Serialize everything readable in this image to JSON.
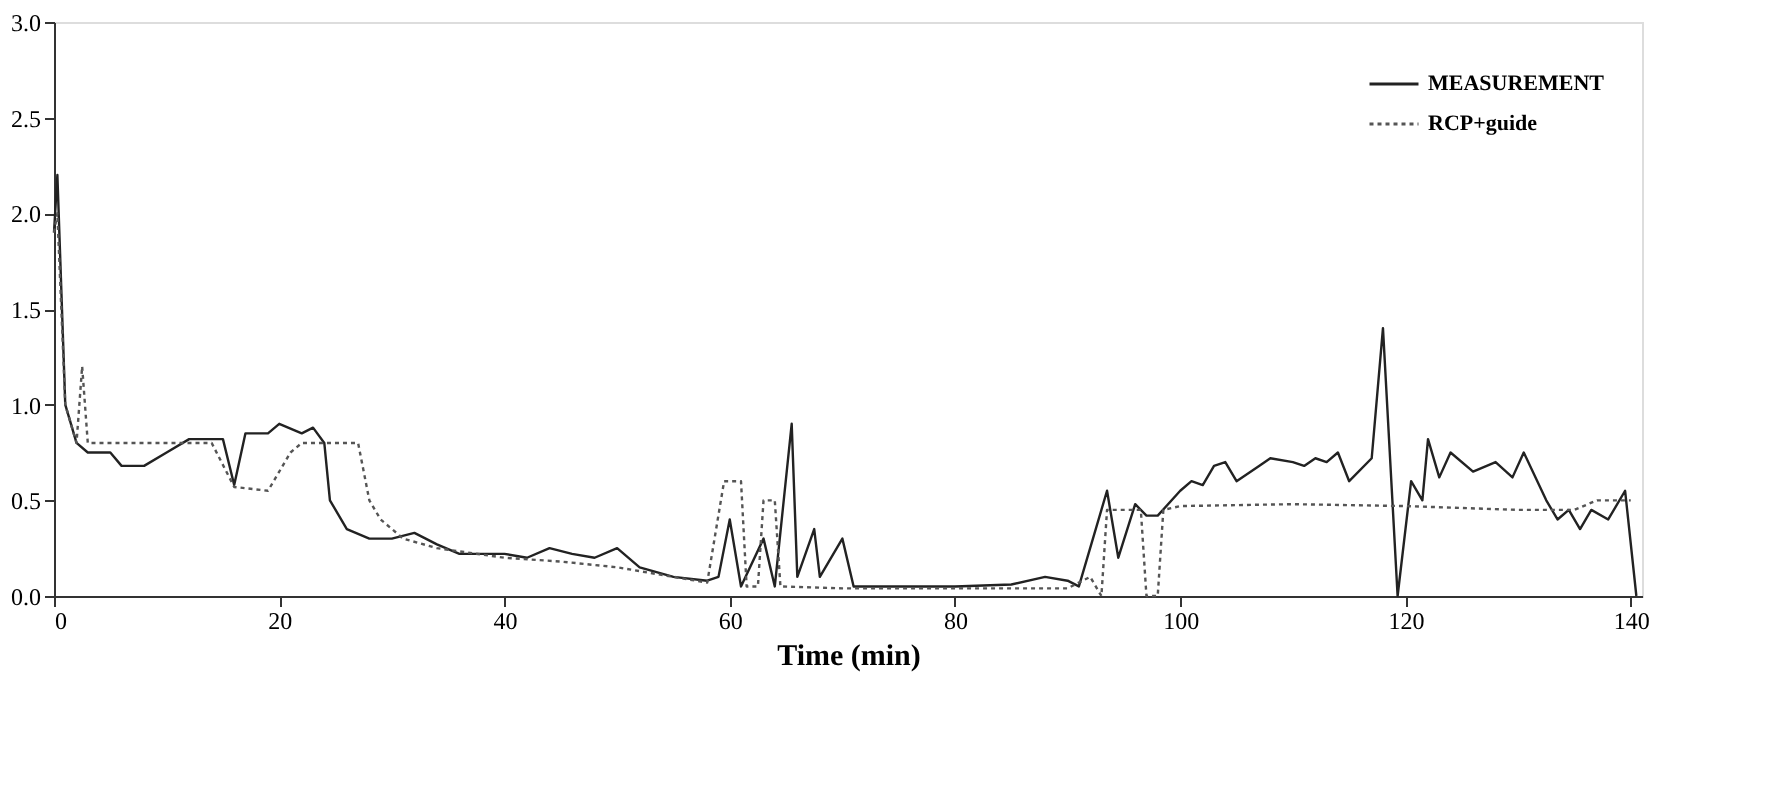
{
  "chart_data": {
    "type": "line",
    "xlabel": "Time (min)",
    "xlim": [
      0,
      141
    ],
    "ylim": [
      0,
      3
    ],
    "xticks": [
      0,
      20,
      40,
      60,
      80,
      100,
      120,
      140
    ],
    "yticks": [
      {
        "value": 0,
        "label": "0.0"
      },
      {
        "value": 0.5,
        "label": "0.5"
      },
      {
        "value": 1,
        "label": "1.0"
      },
      {
        "value": 1.5,
        "label": "1.5"
      },
      {
        "value": 2,
        "label": "2.0"
      },
      {
        "value": 2.5,
        "label": "2.5"
      },
      {
        "value": 3,
        "label": "3.0"
      }
    ],
    "grid": false,
    "legend": "top right",
    "marker": "none",
    "series": [
      {
        "name": "MEASUREMENT",
        "color": "#222222",
        "line_style": "solid",
        "x": [
          0,
          0.3,
          1,
          2,
          3,
          5,
          6,
          8,
          10,
          12,
          15,
          16,
          17,
          19,
          20,
          22,
          23,
          24,
          24.5,
          26,
          28,
          30,
          32,
          34,
          36,
          40,
          42,
          44,
          46,
          48,
          50,
          52,
          55,
          58,
          59,
          60,
          61,
          63,
          64,
          65.5,
          66,
          67.5,
          68,
          70,
          71,
          75,
          80,
          85,
          88,
          90,
          91,
          93.5,
          94.5,
          96,
          97,
          98,
          100,
          101,
          102,
          103,
          104,
          105,
          107,
          108,
          110,
          111,
          112,
          113,
          114,
          115,
          117,
          118,
          119.3,
          120.5,
          121.5,
          122,
          123,
          124,
          126,
          128,
          129.5,
          130.5,
          132.5,
          133.5,
          134.5,
          135.5,
          136.5,
          138,
          139.5,
          140.5
        ],
        "values": [
          1.9,
          2.2,
          1.0,
          0.8,
          0.75,
          0.75,
          0.68,
          0.68,
          0.75,
          0.82,
          0.82,
          0.58,
          0.85,
          0.85,
          0.9,
          0.85,
          0.88,
          0.8,
          0.5,
          0.35,
          0.3,
          0.3,
          0.33,
          0.27,
          0.22,
          0.22,
          0.2,
          0.25,
          0.22,
          0.2,
          0.25,
          0.15,
          0.1,
          0.08,
          0.1,
          0.4,
          0.05,
          0.3,
          0.05,
          0.9,
          0.1,
          0.35,
          0.1,
          0.3,
          0.05,
          0.05,
          0.05,
          0.06,
          0.1,
          0.08,
          0.05,
          0.55,
          0.2,
          0.48,
          0.42,
          0.42,
          0.55,
          0.6,
          0.58,
          0.68,
          0.7,
          0.6,
          0.68,
          0.72,
          0.7,
          0.68,
          0.72,
          0.7,
          0.75,
          0.6,
          0.72,
          1.4,
          0.0,
          0.6,
          0.5,
          0.82,
          0.62,
          0.75,
          0.65,
          0.7,
          0.62,
          0.75,
          0.5,
          0.4,
          0.45,
          0.35,
          0.45,
          0.4,
          0.55,
          0.0
        ]
      },
      {
        "name": "RCP+guide",
        "color": "#555555",
        "line_style": "dotted",
        "x": [
          0,
          0.3,
          1,
          2,
          2.5,
          3,
          5,
          14,
          16,
          19,
          21,
          22,
          27,
          28,
          29,
          31,
          34,
          40,
          45,
          50,
          55,
          58,
          59.5,
          61,
          61.5,
          62.5,
          63,
          64,
          64.5,
          70,
          90,
          92,
          93,
          93.5,
          95,
          96.5,
          97,
          98,
          98.5,
          100,
          110,
          120,
          130,
          135,
          137,
          140
        ],
        "values": [
          1.9,
          2.0,
          1.0,
          0.8,
          1.2,
          0.8,
          0.8,
          0.8,
          0.57,
          0.55,
          0.75,
          0.8,
          0.8,
          0.5,
          0.4,
          0.3,
          0.25,
          0.2,
          0.18,
          0.15,
          0.1,
          0.07,
          0.6,
          0.6,
          0.05,
          0.05,
          0.5,
          0.5,
          0.05,
          0.04,
          0.04,
          0.1,
          0.0,
          0.45,
          0.45,
          0.45,
          0.0,
          0.0,
          0.45,
          0.47,
          0.48,
          0.47,
          0.45,
          0.45,
          0.5,
          0.5
        ]
      }
    ]
  }
}
